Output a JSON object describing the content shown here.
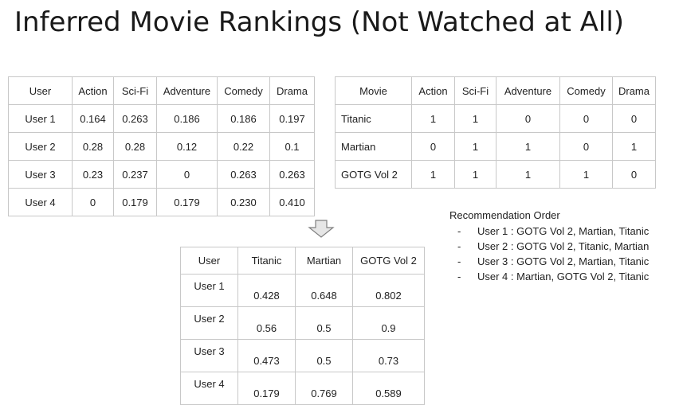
{
  "title": "Inferred Movie Rankings (Not Watched at All)",
  "user_genre_table": {
    "headers": [
      "User",
      "Action",
      "Sci-Fi",
      "Adventure",
      "Comedy",
      "Drama"
    ],
    "rows": [
      [
        "User 1",
        "0.164",
        "0.263",
        "0.186",
        "0.186",
        "0.197"
      ],
      [
        "User 2",
        "0.28",
        "0.28",
        "0.12",
        "0.22",
        "0.1"
      ],
      [
        "User 3",
        "0.23",
        "0.237",
        "0",
        "0.263",
        "0.263"
      ],
      [
        "User 4",
        "0",
        "0.179",
        "0.179",
        "0.230",
        "0.410"
      ]
    ]
  },
  "movie_genre_table": {
    "headers": [
      "Movie",
      "Action",
      "Sci-Fi",
      "Adventure",
      "Comedy",
      "Drama"
    ],
    "rows": [
      [
        "Titanic",
        "1",
        "1",
        "0",
        "0",
        "0"
      ],
      [
        "Martian",
        "0",
        "1",
        "1",
        "0",
        "1"
      ],
      [
        "GOTG Vol 2",
        "1",
        "1",
        "1",
        "1",
        "0"
      ]
    ]
  },
  "result_table": {
    "headers": [
      "User",
      "Titanic",
      "Martian",
      "GOTG Vol 2"
    ],
    "rows": [
      [
        "User 1",
        "0.428",
        "0.648",
        "0.802"
      ],
      [
        "User 2",
        "0.56",
        "0.5",
        "0.9"
      ],
      [
        "User 3",
        "0.473",
        "0.5",
        "0.73"
      ],
      [
        "User 4",
        "0.179",
        "0.769",
        "0.589"
      ]
    ]
  },
  "recommendation": {
    "heading": "Recommendation Order",
    "bullet": "-",
    "items": [
      "User 1 : GOTG Vol 2, Martian, Titanic",
      "User 2 : GOTG Vol 2, Titanic, Martian",
      "User 3 : GOTG Vol 2, Martian, Titanic",
      "User 4 : Martian, GOTG Vol 2, Titanic"
    ]
  },
  "icons": {
    "arrow": "down-arrow-icon"
  },
  "colors": {
    "grid_border": "#c8c8c8",
    "arrow_fill": "#e6e6e6",
    "arrow_stroke": "#7f7f7f"
  }
}
